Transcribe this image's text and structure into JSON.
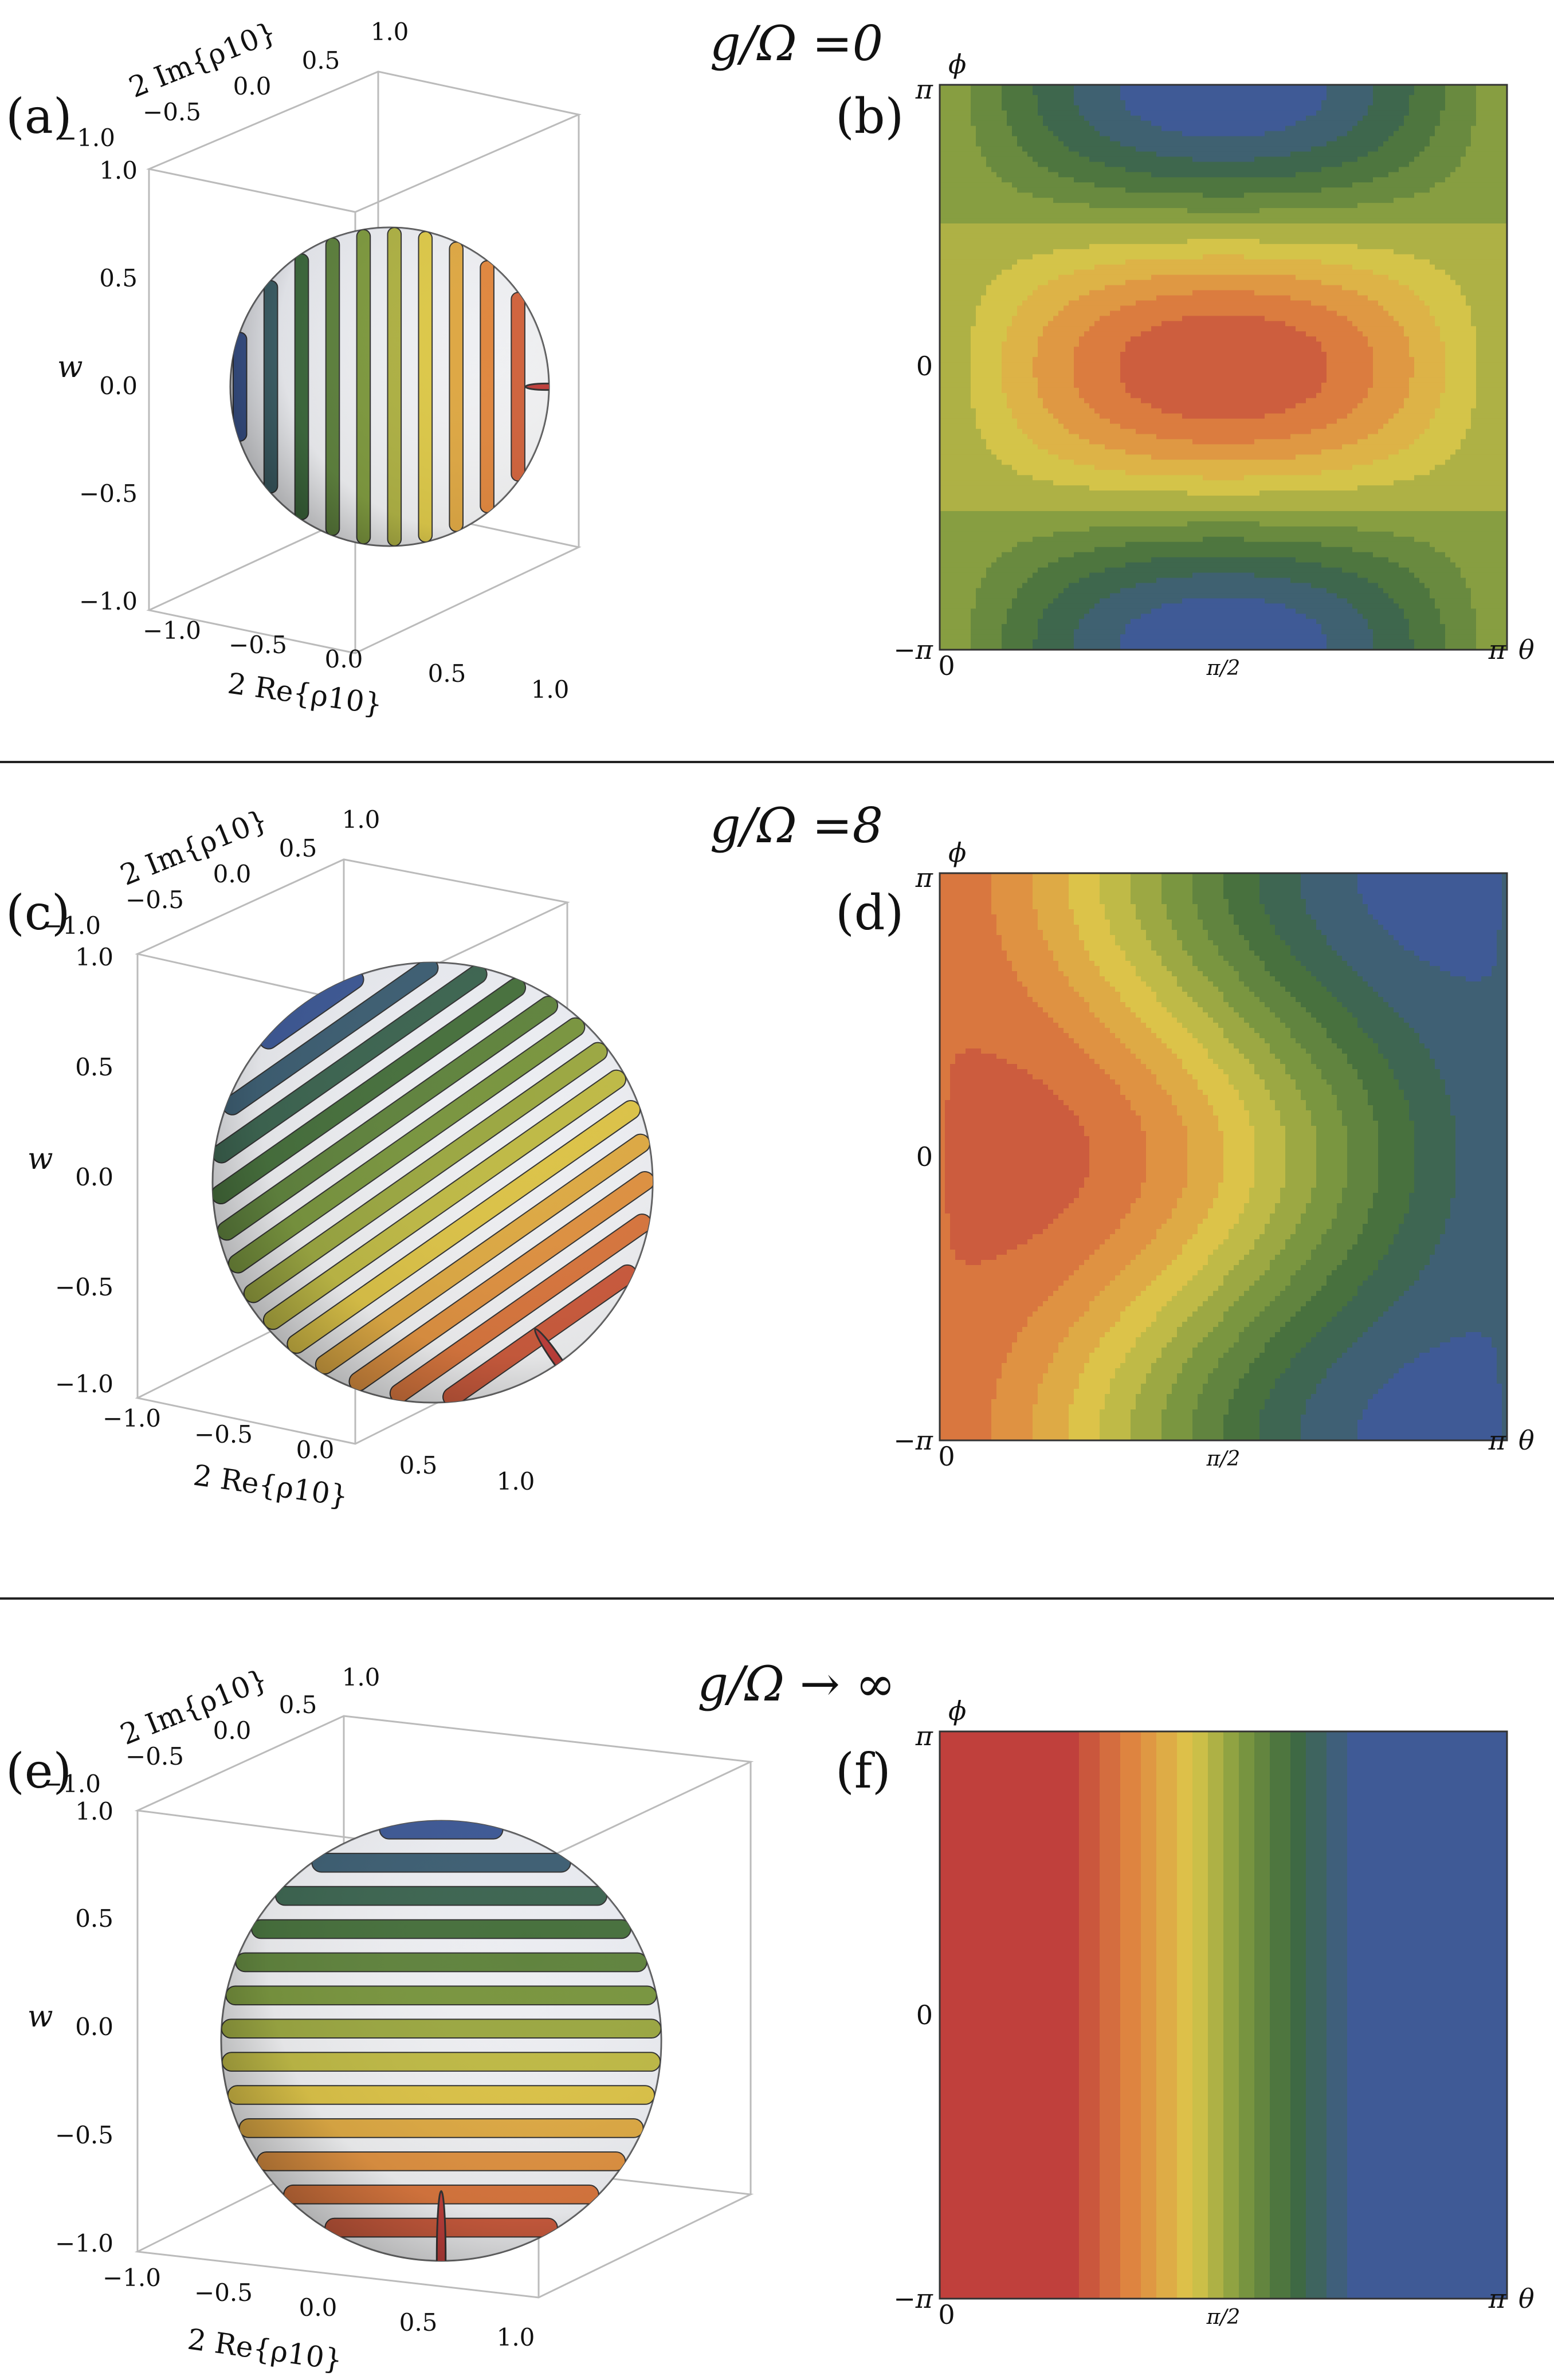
{
  "colors": {
    "red": "#c0403c",
    "orange": "#e08840",
    "yellow": "#dcc84a",
    "green": "#7f9a40",
    "darkgreen": "#3e6a3e",
    "blue": "#3f5a96",
    "divider": "#222222"
  },
  "rows": [
    {
      "title": "g/Ω =0"
    },
    {
      "title": "g/Ω =8"
    },
    {
      "title": "g/Ω → ∞"
    }
  ],
  "panels": [
    {
      "label": "(a)"
    },
    {
      "label": "(b)"
    },
    {
      "label": "(c)"
    },
    {
      "label": "(d)"
    },
    {
      "label": "(e)"
    },
    {
      "label": "(f)"
    }
  ],
  "sphere_axes": {
    "ticks": [
      "1.0",
      "0.5",
      "0.0",
      "−0.5",
      "−1.0"
    ],
    "re_ticks": [
      "−1.0",
      "−0.5",
      "0.0",
      "0.5",
      "1.0"
    ],
    "im_ticks": [
      "−1.0",
      "−0.5",
      "0.0",
      "0.5",
      "1.0"
    ],
    "w_label": "w",
    "re_label": "2 Re{ρ10}",
    "im_label": "2 Im{ρ10}"
  },
  "contour_axes": {
    "x_label": "θ",
    "y_label": "ϕ",
    "x_ticks": [
      "0",
      "π/2",
      "π"
    ],
    "y_ticks": [
      "π",
      "0",
      "−π"
    ]
  },
  "chart_data": [
    {
      "type": "surface-3d",
      "panel": "(a)",
      "title": "g/Ω =0",
      "xlabel": "2 Re{ρ10}",
      "ylabel": "2 Im{ρ10}",
      "zlabel": "w",
      "xlim": [
        -1,
        1
      ],
      "ylim": [
        -1,
        1
      ],
      "zlim": [
        -1,
        1
      ]
    },
    {
      "type": "heatmap",
      "panel": "(b)",
      "title": "g/Ω =0",
      "xlabel": "θ",
      "ylabel": "ϕ",
      "xlim": [
        0,
        3.1416
      ],
      "ylim": [
        -3.1416,
        3.1416
      ],
      "x_ticks": [
        "0",
        "π/2",
        "π"
      ],
      "y_ticks": [
        "−π",
        "0",
        "π"
      ],
      "max_at": {
        "theta": 1.5708,
        "phi": 0
      },
      "min_at": [
        {
          "theta": 1.5708,
          "phi": 3.1416
        },
        {
          "theta": 1.5708,
          "phi": -3.1416
        }
      ]
    },
    {
      "type": "surface-3d",
      "panel": "(c)",
      "title": "g/Ω =8",
      "xlabel": "2 Re{ρ10}",
      "ylabel": "2 Im{ρ10}",
      "zlabel": "w",
      "xlim": [
        -1,
        1
      ],
      "ylim": [
        -1,
        1
      ],
      "zlim": [
        -1,
        1
      ]
    },
    {
      "type": "heatmap",
      "panel": "(d)",
      "title": "g/Ω =8",
      "xlabel": "θ",
      "ylabel": "ϕ",
      "xlim": [
        0,
        3.1416
      ],
      "ylim": [
        -3.1416,
        3.1416
      ],
      "x_ticks": [
        "0",
        "π/2",
        "π"
      ],
      "y_ticks": [
        "−π",
        "0",
        "π"
      ],
      "max_at": {
        "theta": 0.55,
        "phi": 0
      }
    },
    {
      "type": "surface-3d",
      "panel": "(e)",
      "title": "g/Ω → ∞",
      "xlabel": "2 Re{ρ10}",
      "ylabel": "2 Im{ρ10}",
      "zlabel": "w",
      "xlim": [
        -1,
        1
      ],
      "ylim": [
        -1,
        1
      ],
      "zlim": [
        -1,
        1
      ]
    },
    {
      "type": "heatmap",
      "panel": "(f)",
      "title": "g/Ω → ∞",
      "xlabel": "θ",
      "ylabel": "ϕ",
      "xlim": [
        0,
        3.1416
      ],
      "ylim": [
        -3.1416,
        3.1416
      ],
      "x_ticks": [
        "0",
        "π/2",
        "π"
      ],
      "y_ticks": [
        "−π",
        "0",
        "π"
      ],
      "depends_on": "theta"
    }
  ]
}
